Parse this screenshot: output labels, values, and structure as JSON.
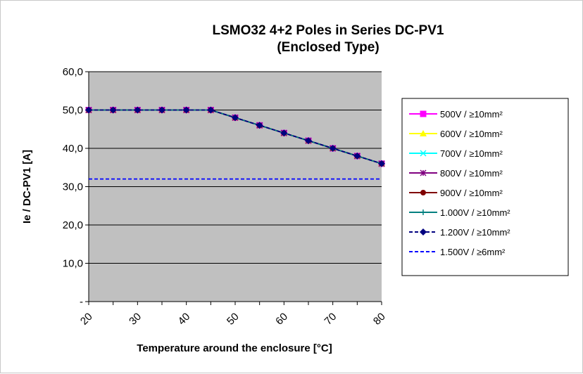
{
  "chart_data": {
    "type": "line",
    "title": "LSMO32 4+2 Poles in Series DC-PV1",
    "subtitle": "(Enclosed Type)",
    "xlabel": "Temperature around the enclosure [°C]",
    "ylabel": "Ie / DC-PV1 [A]",
    "x": [
      20,
      25,
      30,
      35,
      40,
      45,
      50,
      55,
      60,
      65,
      70,
      75,
      80
    ],
    "x_tick_labels": [
      "20",
      "30",
      "40",
      "50",
      "60",
      "70",
      "80"
    ],
    "x_tick_values": [
      20,
      30,
      40,
      50,
      60,
      70,
      80
    ],
    "y_tick_labels": [
      "-",
      "10,0",
      "20,0",
      "30,0",
      "40,0",
      "50,0",
      "60,0"
    ],
    "y_tick_values": [
      0,
      10,
      20,
      30,
      40,
      50,
      60
    ],
    "xlim": [
      20,
      80
    ],
    "ylim": [
      0,
      60
    ],
    "grid": true,
    "plot_background": "#c0c0c0",
    "legend_position": "right",
    "series": [
      {
        "name": "500V / ≥10mm²",
        "color": "#ff00ff",
        "marker": "square",
        "dash": "solid",
        "values": [
          50,
          50,
          50,
          50,
          50,
          50,
          48,
          46,
          44,
          42,
          40,
          38,
          36
        ]
      },
      {
        "name": "600V / ≥10mm²",
        "color": "#ffff00",
        "marker": "triangle",
        "dash": "solid",
        "values": [
          50,
          50,
          50,
          50,
          50,
          50,
          48,
          46,
          44,
          42,
          40,
          38,
          36
        ]
      },
      {
        "name": "700V / ≥10mm²",
        "color": "#00ffff",
        "marker": "x",
        "dash": "solid",
        "values": [
          50,
          50,
          50,
          50,
          50,
          50,
          48,
          46,
          44,
          42,
          40,
          38,
          36
        ]
      },
      {
        "name": "800V / ≥10mm²",
        "color": "#800080",
        "marker": "star",
        "dash": "solid",
        "values": [
          50,
          50,
          50,
          50,
          50,
          50,
          48,
          46,
          44,
          42,
          40,
          38,
          36
        ]
      },
      {
        "name": "900V / ≥10mm²",
        "color": "#800000",
        "marker": "circle",
        "dash": "solid",
        "values": [
          50,
          50,
          50,
          50,
          50,
          50,
          48,
          46,
          44,
          42,
          40,
          38,
          36
        ]
      },
      {
        "name": "1.000V / ≥10mm²",
        "color": "#008080",
        "marker": "plus",
        "dash": "solid",
        "values": [
          50,
          50,
          50,
          50,
          50,
          50,
          48,
          46,
          44,
          42,
          40,
          38,
          36
        ]
      },
      {
        "name": "1.200V / ≥10mm²",
        "color": "#000080",
        "marker": "diamond",
        "dash": "dashed",
        "values": [
          50,
          50,
          50,
          50,
          50,
          50,
          48,
          46,
          44,
          42,
          40,
          38,
          36
        ]
      },
      {
        "name": "1.500V / ≥6mm²",
        "color": "#0000ff",
        "marker": "none",
        "dash": "dashed",
        "values": [
          32,
          32,
          32,
          32,
          32,
          32,
          32,
          32,
          32,
          32,
          32,
          32,
          32
        ]
      }
    ]
  }
}
